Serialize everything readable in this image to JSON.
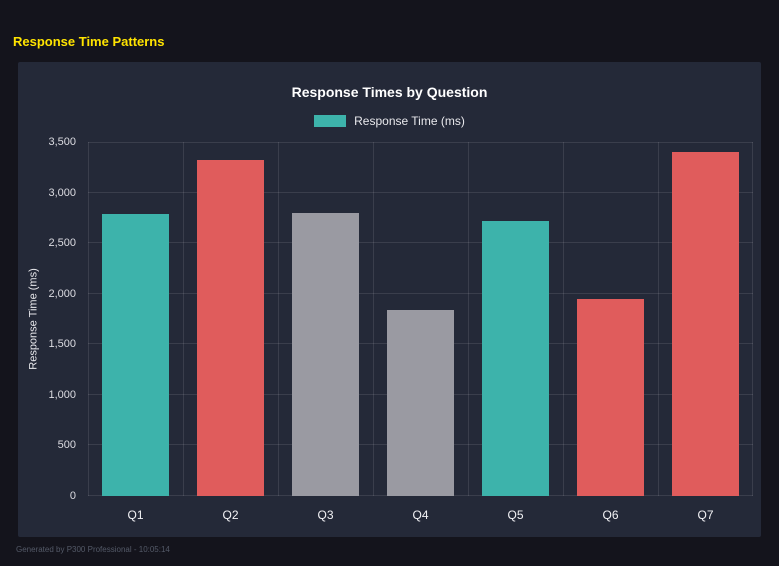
{
  "page": {
    "title": "Response Time Patterns",
    "footer": "Generated by P300 Professional - 10:05:14"
  },
  "colors": {
    "page_bg": "#14141c",
    "panel_bg": "#242938",
    "header_yellow": "#ffe400",
    "teal": "#3db3ab",
    "red": "#e05c5c",
    "gray": "#9a9aa2",
    "grid": "rgba(255,255,255,0.10)"
  },
  "chart_data": {
    "type": "bar",
    "title": "Response Times by Question",
    "legend": {
      "label": "Response Time (ms)",
      "color": "#3db3ab"
    },
    "categories": [
      "Q1",
      "Q2",
      "Q3",
      "Q4",
      "Q5",
      "Q6",
      "Q7"
    ],
    "values": [
      2790,
      3320,
      2800,
      1840,
      2720,
      1950,
      3400
    ],
    "bar_colors": [
      "#3db3ab",
      "#e05c5c",
      "#9a9aa2",
      "#9a9aa2",
      "#3db3ab",
      "#e05c5c",
      "#e05c5c"
    ],
    "xlabel": "",
    "ylabel": "Response Time (ms)",
    "ylim": [
      0,
      3500
    ],
    "yticks": [
      0,
      500,
      1000,
      1500,
      2000,
      2500,
      3000,
      3500
    ],
    "ytick_labels": [
      "0",
      "500",
      "1,000",
      "1,500",
      "2,000",
      "2,500",
      "3,000",
      "3,500"
    ],
    "grid": true,
    "legend_position": "top"
  }
}
